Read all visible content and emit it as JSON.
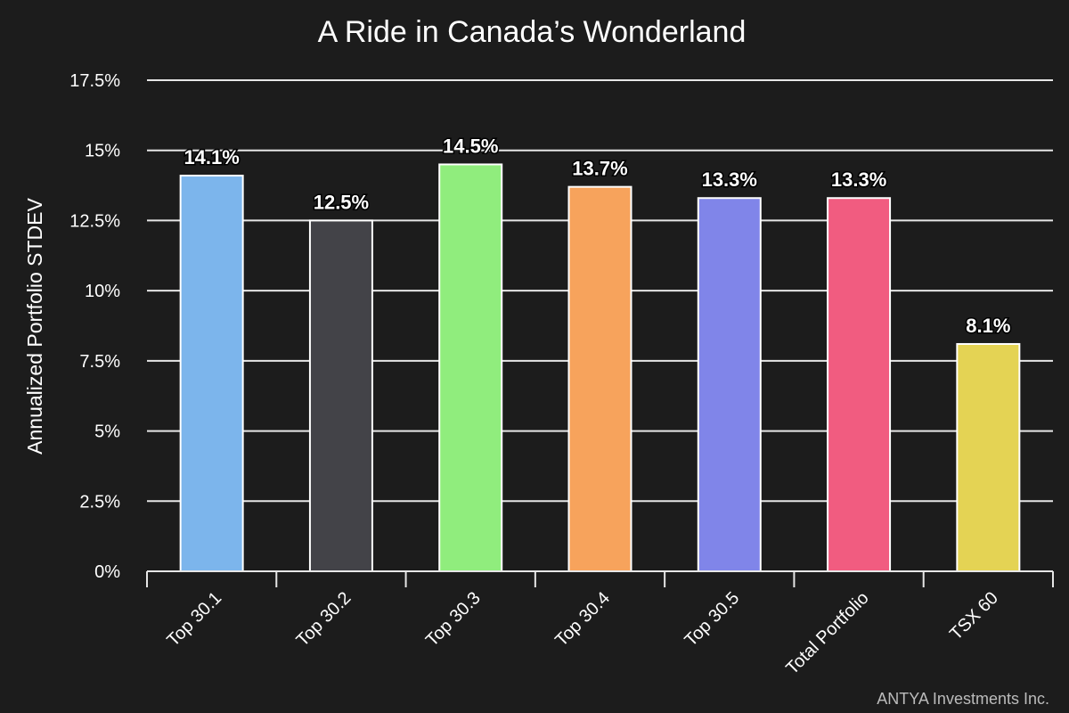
{
  "chart_data": {
    "type": "bar",
    "title": "A Ride in Canada’s Wonderland",
    "xlabel": "",
    "ylabel": "Annualized Portfolio STDEV",
    "categories": [
      "Top 30.1",
      "Top 30.2",
      "Top 30.3",
      "Top 30.4",
      "Top 30.5",
      "Total Portfolio",
      "TSX 60"
    ],
    "values": [
      14.1,
      12.5,
      14.5,
      13.7,
      13.3,
      13.3,
      8.1
    ],
    "data_labels": [
      "14.1%",
      "12.5%",
      "14.5%",
      "13.7%",
      "13.3%",
      "13.3%",
      "8.1%"
    ],
    "colors": [
      "#7cb5ec",
      "#434348",
      "#90ed7d",
      "#f7a35c",
      "#8085e9",
      "#f15c80",
      "#e4d354"
    ],
    "ylim": [
      0,
      17.5
    ],
    "yticks": [
      0,
      2.5,
      5,
      7.5,
      10,
      12.5,
      15,
      17.5
    ],
    "ytick_labels": [
      "0%",
      "2.5%",
      "5%",
      "7.5%",
      "10%",
      "12.5%",
      "15%",
      "17.5%"
    ],
    "grid": true,
    "legend": "none",
    "credit": "ANTYA Investments Inc."
  }
}
